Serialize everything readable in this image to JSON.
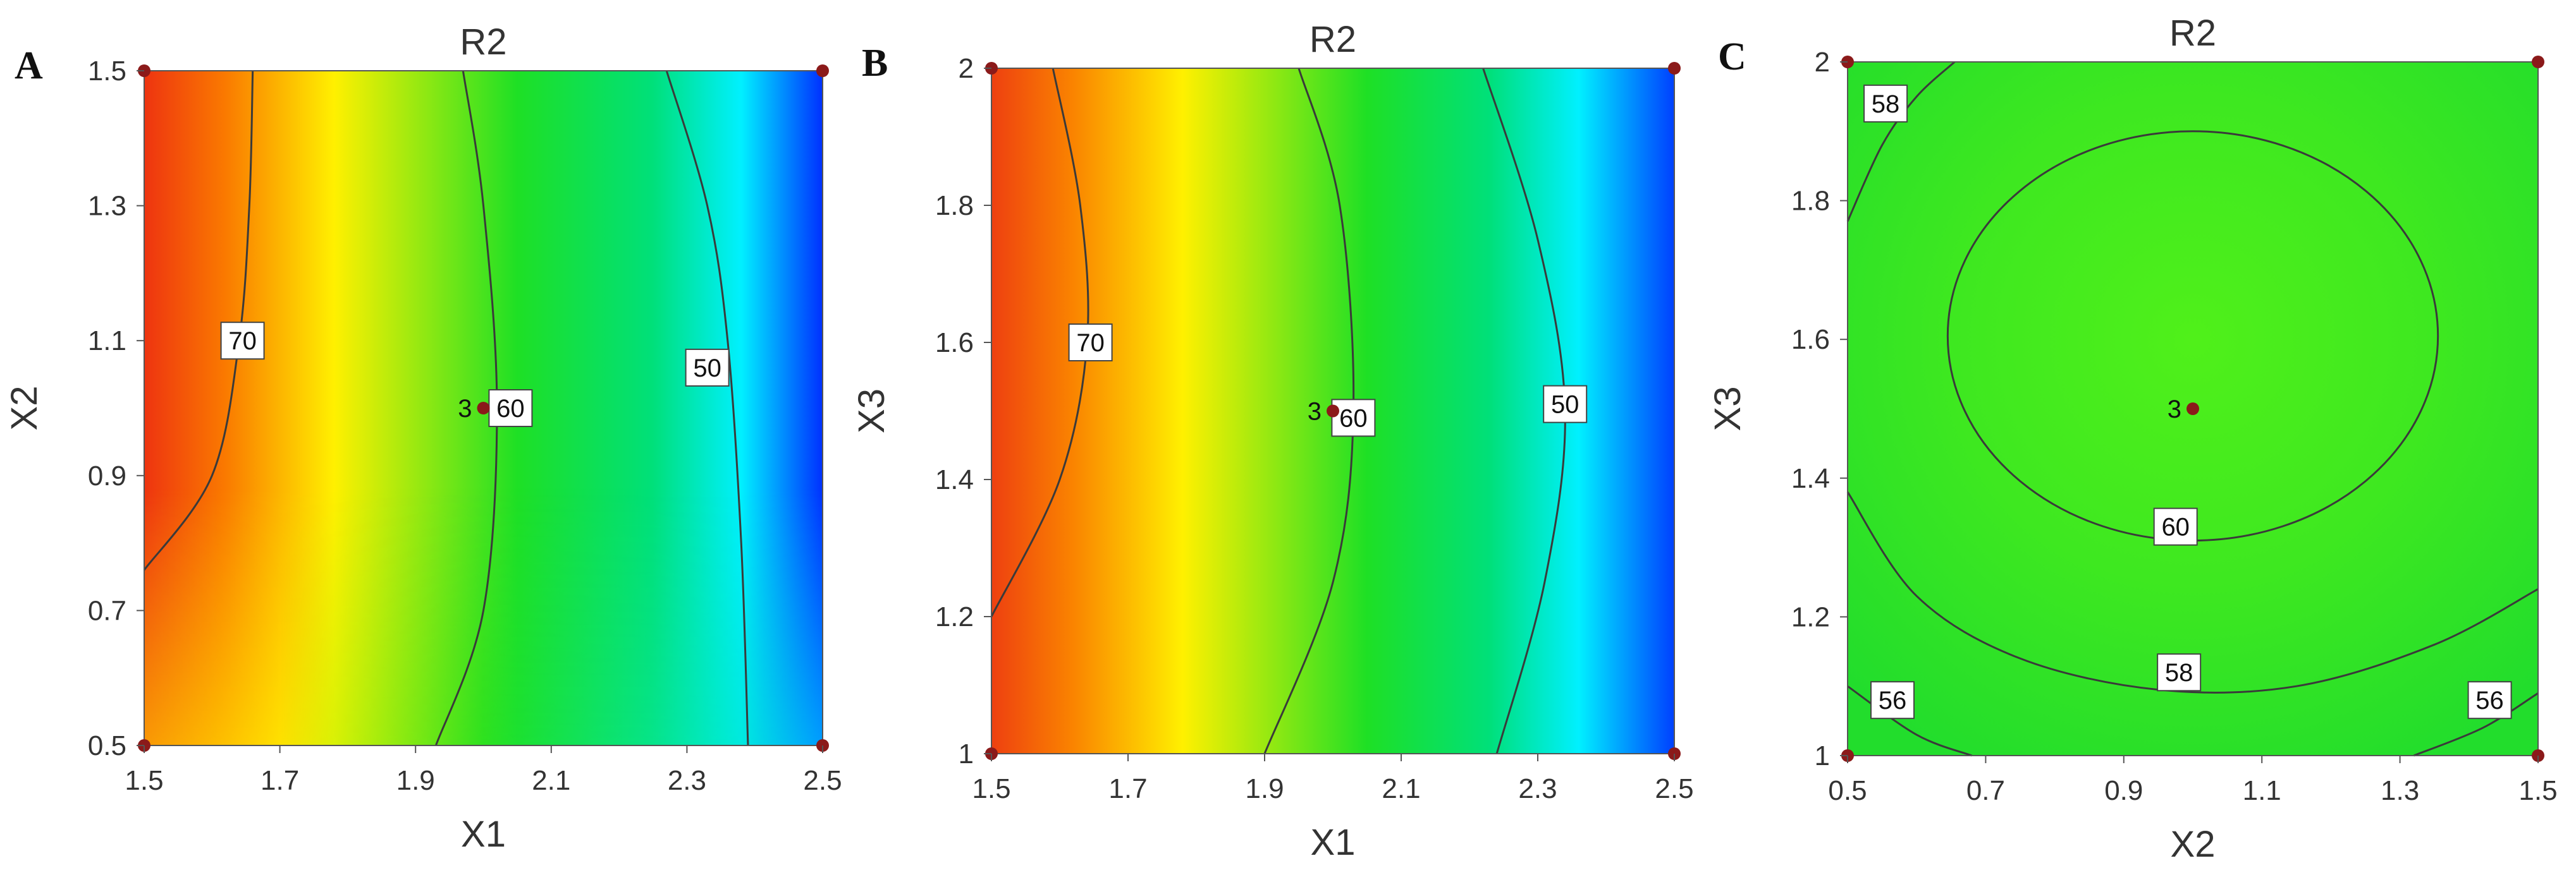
{
  "chart_data": [
    {
      "type": "heatmap",
      "panel_label": "A",
      "title": "R2",
      "xlabel": "X1",
      "ylabel": "X2",
      "xlim": [
        1.5,
        2.5
      ],
      "ylim": [
        0.5,
        1.5
      ],
      "xticks": [
        "1.5",
        "1.7",
        "1.9",
        "2.1",
        "2.3",
        "2.5"
      ],
      "yticks": [
        "0.5",
        "0.7",
        "0.9",
        "1.1",
        "1.3",
        "1.5"
      ],
      "grid": false,
      "contours": [
        {
          "level": "70",
          "points": [
            [
              1.66,
              1.5
            ],
            [
              1.655,
              1.3
            ],
            [
              1.64,
              1.1
            ],
            [
              1.6,
              0.9
            ],
            [
              1.5,
              0.76
            ]
          ],
          "label_at": [
            1.645,
            1.1
          ]
        },
        {
          "level": "60",
          "points": [
            [
              1.97,
              1.5
            ],
            [
              2.0,
              1.3
            ],
            [
              2.02,
              1.0
            ],
            [
              2.0,
              0.7
            ],
            [
              1.93,
              0.5
            ]
          ],
          "label_at": [
            2.04,
            1.0
          ]
        },
        {
          "level": "50",
          "points": [
            [
              2.27,
              1.5
            ],
            [
              2.33,
              1.3
            ],
            [
              2.36,
              1.1
            ],
            [
              2.38,
              0.8
            ],
            [
              2.39,
              0.5
            ]
          ],
          "label_at": [
            2.33,
            1.06
          ]
        }
      ],
      "design_points": [
        {
          "x": 1.5,
          "y": 1.5
        },
        {
          "x": 2.5,
          "y": 1.5
        },
        {
          "x": 1.5,
          "y": 0.5
        },
        {
          "x": 2.5,
          "y": 0.5
        },
        {
          "x": 2.0,
          "y": 1.0,
          "label": "3"
        }
      ]
    },
    {
      "type": "heatmap",
      "panel_label": "B",
      "title": "R2",
      "xlabel": "X1",
      "ylabel": "X3",
      "xlim": [
        1.5,
        2.5
      ],
      "ylim": [
        1.0,
        2.0
      ],
      "xticks": [
        "1.5",
        "1.7",
        "1.9",
        "2.1",
        "2.3",
        "2.5"
      ],
      "yticks": [
        "1",
        "1.2",
        "1.4",
        "1.6",
        "1.8",
        "2"
      ],
      "grid": false,
      "contours": [
        {
          "level": "70",
          "points": [
            [
              1.59,
              2.0
            ],
            [
              1.63,
              1.8
            ],
            [
              1.64,
              1.6
            ],
            [
              1.6,
              1.4
            ],
            [
              1.5,
              1.2
            ]
          ],
          "label_at": [
            1.645,
            1.6
          ]
        },
        {
          "level": "60",
          "points": [
            [
              1.95,
              2.0
            ],
            [
              2.01,
              1.8
            ],
            [
              2.03,
              1.5
            ],
            [
              2.0,
              1.25
            ],
            [
              1.9,
              1.0
            ]
          ],
          "label_at": [
            2.03,
            1.49
          ]
        },
        {
          "level": "50",
          "points": [
            [
              2.22,
              2.0
            ],
            [
              2.3,
              1.75
            ],
            [
              2.34,
              1.5
            ],
            [
              2.31,
              1.25
            ],
            [
              2.24,
              1.0
            ]
          ],
          "label_at": [
            2.34,
            1.51
          ]
        }
      ],
      "design_points": [
        {
          "x": 1.5,
          "y": 2.0
        },
        {
          "x": 2.5,
          "y": 2.0
        },
        {
          "x": 1.5,
          "y": 1.0
        },
        {
          "x": 2.5,
          "y": 1.0
        },
        {
          "x": 2.0,
          "y": 1.5,
          "label": "3"
        }
      ]
    },
    {
      "type": "heatmap",
      "panel_label": "C",
      "title": "R2",
      "xlabel": "X2",
      "ylabel": "X3",
      "xlim": [
        0.5,
        1.5
      ],
      "ylim": [
        1.0,
        2.0
      ],
      "xticks": [
        "0.5",
        "0.7",
        "0.9",
        "1.1",
        "1.3",
        "1.5"
      ],
      "yticks": [
        "1",
        "1.2",
        "1.4",
        "1.6",
        "1.8",
        "2"
      ],
      "grid": false,
      "contours": [
        {
          "level": "60",
          "shape": "ellipse",
          "cx": 1.0,
          "cy": 1.605,
          "rx": 0.355,
          "ry": 0.295,
          "label_at": [
            0.975,
            1.33
          ]
        },
        {
          "level": "58",
          "points": [
            [
              0.5,
              1.38
            ],
            [
              0.6,
              1.23
            ],
            [
              0.75,
              1.14
            ],
            [
              0.95,
              1.095
            ],
            [
              1.15,
              1.1
            ],
            [
              1.35,
              1.16
            ],
            [
              1.5,
              1.24
            ]
          ],
          "label_at": [
            0.98,
            1.12
          ]
        },
        {
          "level": "58",
          "points": [
            [
              0.5,
              1.77
            ],
            [
              0.55,
              1.88
            ],
            [
              0.6,
              1.95
            ],
            [
              0.655,
              2.0
            ]
          ],
          "label_at": [
            0.555,
            1.94
          ]
        },
        {
          "level": "56",
          "points": [
            [
              0.5,
              1.1
            ],
            [
              0.6,
              1.03
            ],
            [
              0.68,
              1.0
            ]
          ],
          "label_at": [
            0.565,
            1.08
          ]
        },
        {
          "level": "56",
          "points": [
            [
              1.32,
              1.0
            ],
            [
              1.42,
              1.04
            ],
            [
              1.5,
              1.09
            ]
          ],
          "label_at": [
            1.43,
            1.08
          ]
        }
      ],
      "design_points": [
        {
          "x": 0.5,
          "y": 2.0
        },
        {
          "x": 1.5,
          "y": 2.0
        },
        {
          "x": 0.5,
          "y": 1.0
        },
        {
          "x": 1.5,
          "y": 1.0
        },
        {
          "x": 1.0,
          "y": 1.5,
          "label": "3"
        }
      ]
    }
  ]
}
